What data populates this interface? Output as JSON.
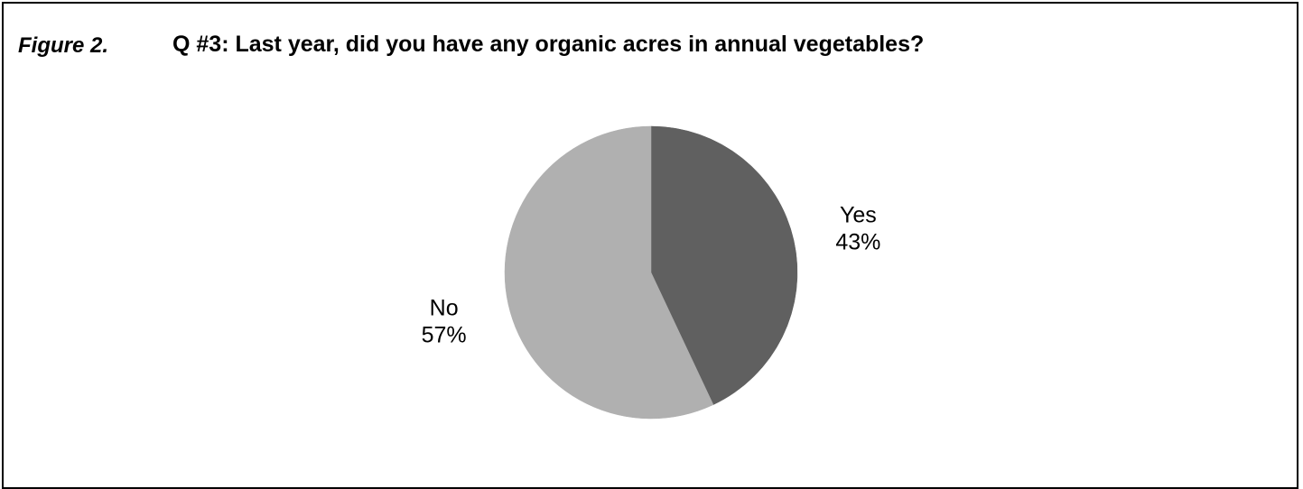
{
  "figure": {
    "label": "Figure 2.",
    "title": "Q #3: Last year, did you have any organic acres in annual vegetables?"
  },
  "chart_data": {
    "type": "pie",
    "title": "Q #3: Last year, did you have any organic acres in annual vegetables?",
    "slices": [
      {
        "label": "Yes",
        "value": 43,
        "value_label": "43%",
        "color": "#606060"
      },
      {
        "label": "No",
        "value": 57,
        "value_label": "57%",
        "color": "#b0b0b0"
      }
    ],
    "start_angle": "12 o'clock",
    "direction": "clockwise",
    "legend": "none",
    "data_labels": "outside"
  }
}
